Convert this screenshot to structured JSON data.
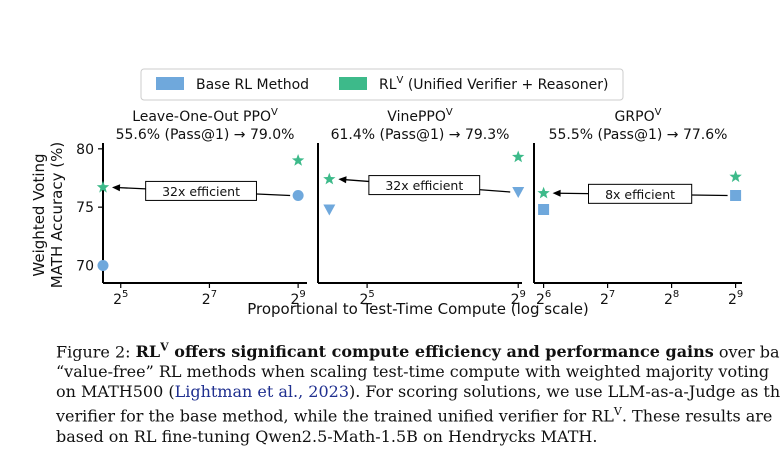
{
  "legend": {
    "base_label": "Base RL Method",
    "rlv_label_main": "RL",
    "rlv_label_sup": "V",
    "rlv_label_rest": " (Unified Verifier + Reasoner)"
  },
  "colors": {
    "base": "#6fa8dc",
    "rlv": "#3dba8a",
    "axis": "#000000"
  },
  "y_axis": {
    "label_line1": "Weighted Voting",
    "label_line2": "MATH Accuracy (%)",
    "ticks": [
      70,
      75,
      80
    ],
    "ylim": [
      68.5,
      80.5
    ]
  },
  "x_axis_label": "Proportional to Test-Time Compute (log scale)",
  "chart_data": [
    {
      "type": "scatter",
      "title": "Leave-One-Out PPO",
      "title_sup": "V",
      "subtitle": "55.6% (Pass@1) → 79.0%",
      "xscale": "log2",
      "xlim_exp": [
        4.6,
        9.2
      ],
      "xtick_exps": [
        5,
        7,
        9
      ],
      "base_marker": "circle",
      "series": [
        {
          "name": "Base RL Method",
          "points": [
            {
              "x": "2^4.6",
              "x_exp": 4.6,
              "y": 70.0
            },
            {
              "x": "2^9",
              "x_exp": 9.0,
              "y": 76.0
            }
          ]
        },
        {
          "name": "RLV",
          "points": [
            {
              "x": "2^4.6",
              "x_exp": 4.6,
              "y": 76.7
            },
            {
              "x": "2^9",
              "x_exp": 9.0,
              "y": 79.0
            }
          ]
        }
      ],
      "annotation": "32x efficient"
    },
    {
      "type": "scatter",
      "title": "VinePPO",
      "title_sup": "V",
      "subtitle": "61.4% (Pass@1) → 79.3%",
      "xscale": "log2",
      "xlim_exp": [
        3.7,
        9.1
      ],
      "xtick_exps": [
        5,
        9
      ],
      "base_marker": "triangle",
      "series": [
        {
          "name": "Base RL Method",
          "points": [
            {
              "x": "2^4",
              "x_exp": 4.0,
              "y": 74.8
            },
            {
              "x": "2^9",
              "x_exp": 9.0,
              "y": 76.3
            }
          ]
        },
        {
          "name": "RLV",
          "points": [
            {
              "x": "2^4",
              "x_exp": 4.0,
              "y": 77.4
            },
            {
              "x": "2^9",
              "x_exp": 9.0,
              "y": 79.3
            }
          ]
        }
      ],
      "annotation": "32x efficient"
    },
    {
      "type": "scatter",
      "title": "GRPO",
      "title_sup": "V",
      "subtitle": "55.5% (Pass@1) → 77.6%",
      "xscale": "log2",
      "xlim_exp": [
        5.85,
        9.1
      ],
      "xtick_exps": [
        6,
        7,
        8,
        9
      ],
      "base_marker": "square",
      "series": [
        {
          "name": "Base RL Method",
          "points": [
            {
              "x": "2^6",
              "x_exp": 6.0,
              "y": 74.8
            },
            {
              "x": "2^9",
              "x_exp": 9.0,
              "y": 76.0
            }
          ]
        },
        {
          "name": "RLV",
          "points": [
            {
              "x": "2^6",
              "x_exp": 6.0,
              "y": 76.2
            },
            {
              "x": "2^9",
              "x_exp": 9.0,
              "y": 77.6
            }
          ]
        }
      ],
      "annotation": "8x efficient"
    }
  ],
  "caption": {
    "fig_label": "Figure 2: ",
    "bold_main": "RL",
    "bold_sup": "V",
    "bold_rest": " offers significant compute efficiency and performance gains",
    "line1_tail": " over base",
    "line2": "“value-free” RL methods when scaling test-time compute with weighted majority voting",
    "line3_a": "on MATH500 (",
    "cite": "Lightman et al., 2023",
    "line3_b": "). For scoring solutions, we use LLM-as-a-Judge as the",
    "line4_a": "verifier for the base method, while the trained unified verifier for RL",
    "line4_sup": "V",
    "line4_b": ". These results are",
    "line5": "based on RL fine-tuning Qwen2.5-Math-1.5B on Hendrycks MATH."
  }
}
